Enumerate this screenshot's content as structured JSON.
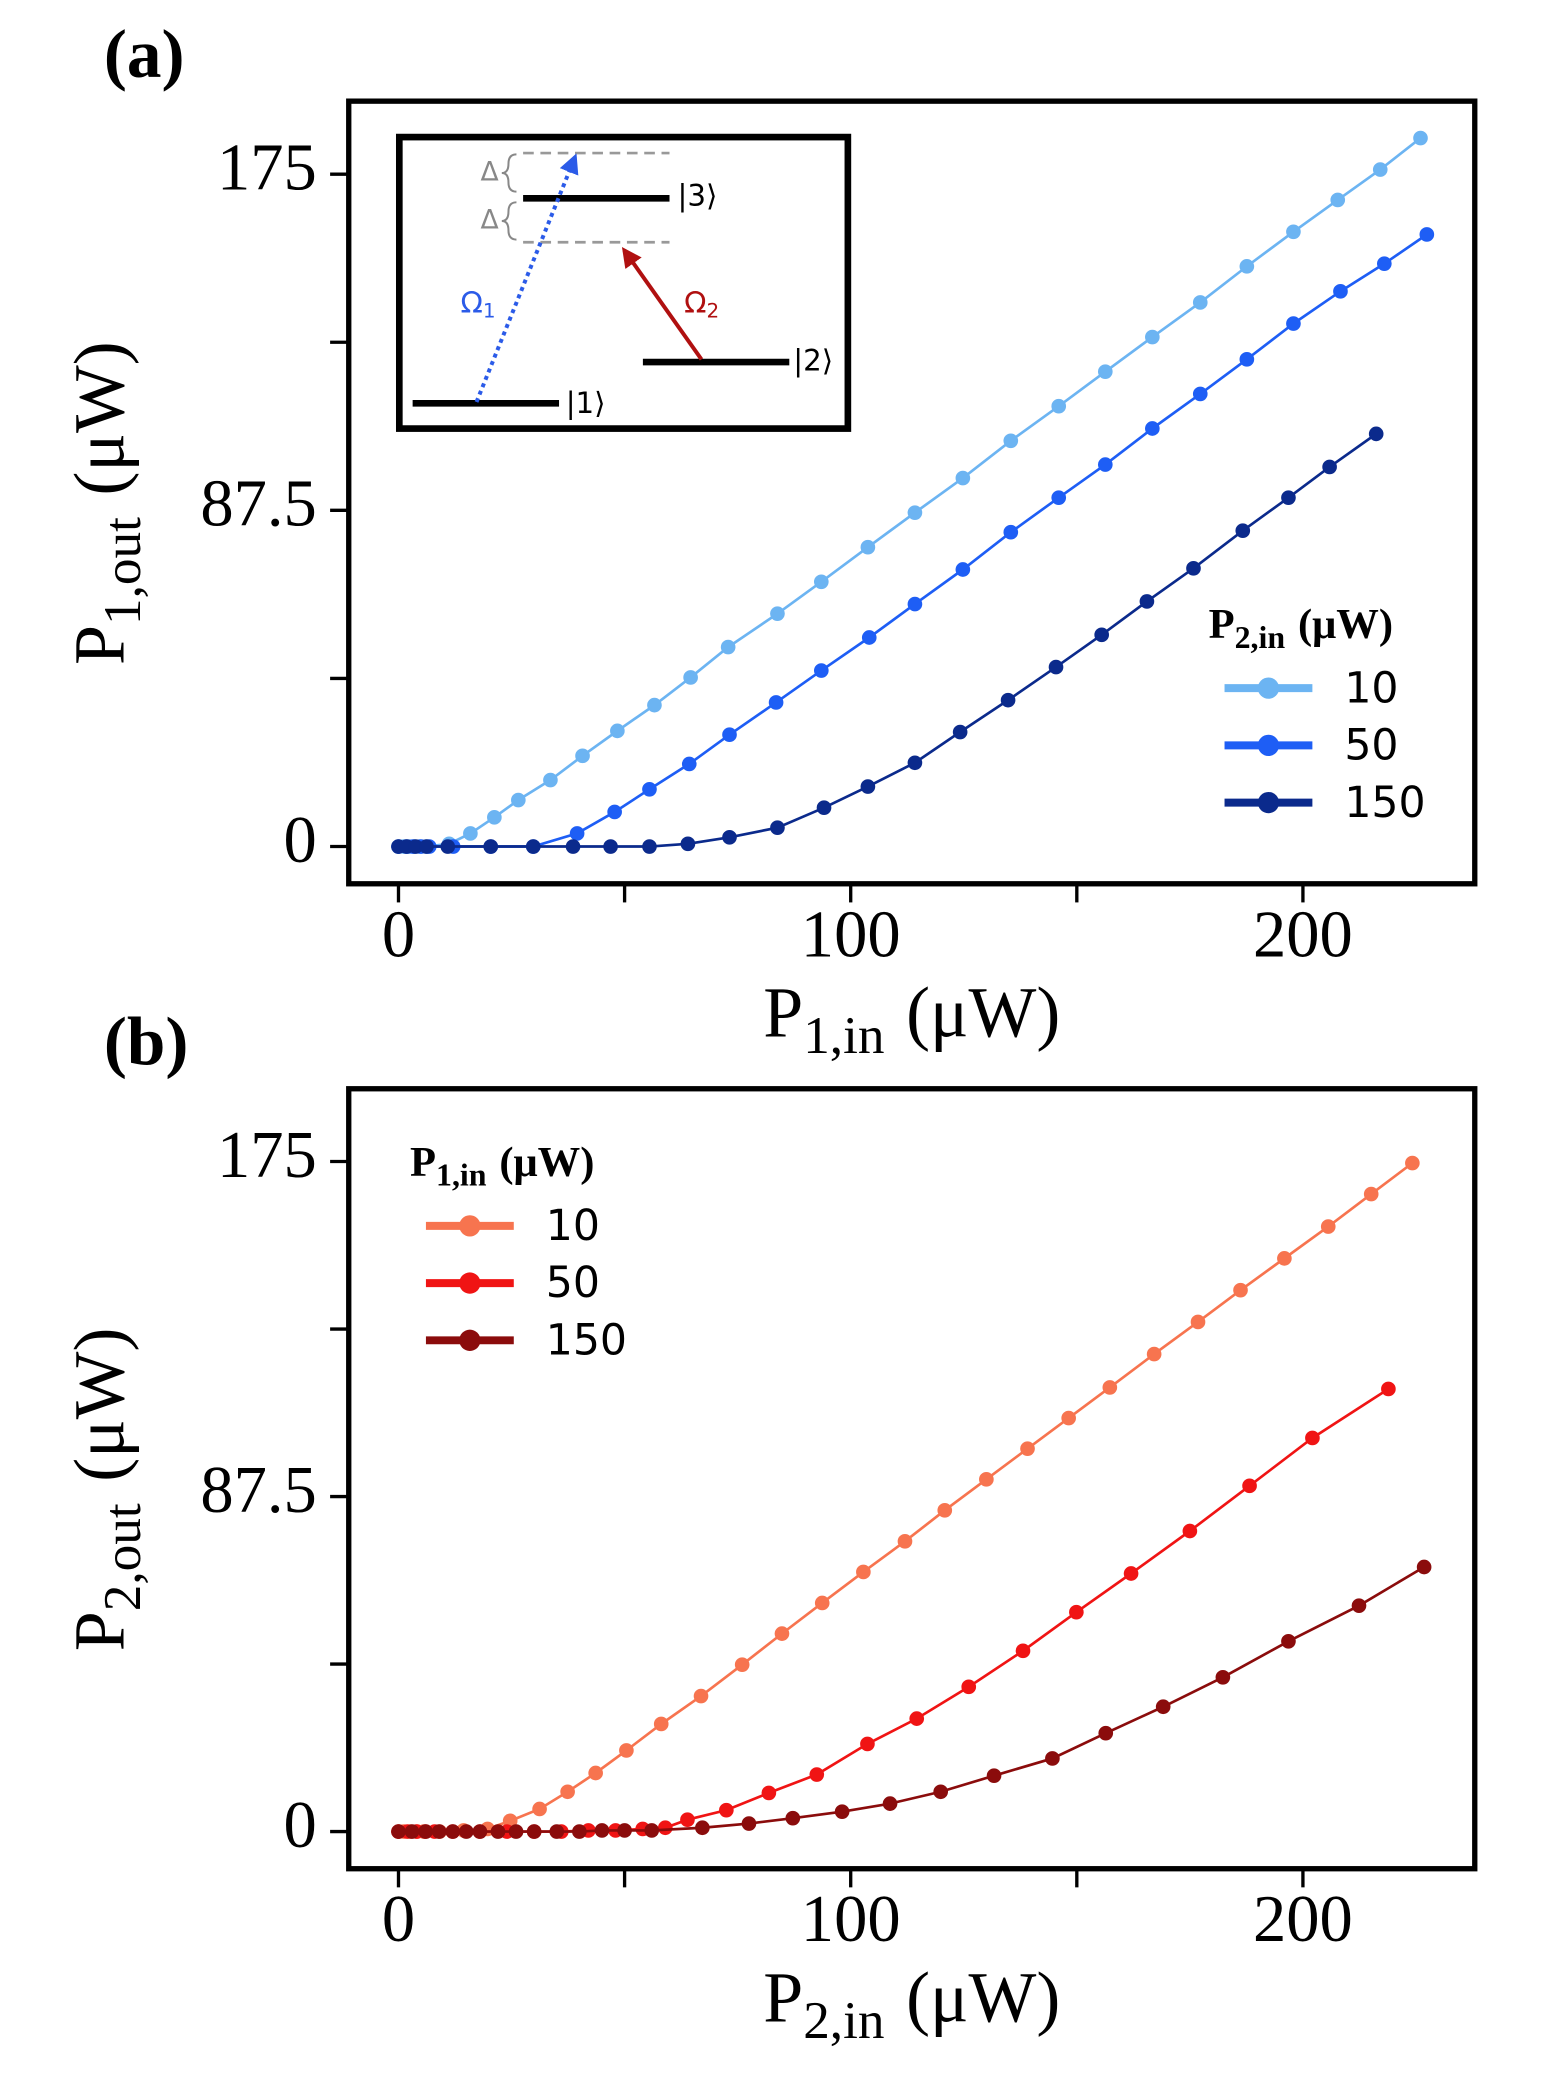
{
  "chart_data": [
    {
      "type": "line",
      "panel": "(a)",
      "xlabel": {
        "main": "P",
        "sub": "1,in",
        "unit": "(μW)"
      },
      "ylabel": {
        "main": "P",
        "sub": "1,out",
        "unit": "(μW)"
      },
      "xlim": [
        -11,
        238
      ],
      "xticks": [
        0,
        100,
        200
      ],
      "xminor": [
        50,
        150
      ],
      "ylim": [
        -9.7,
        194
      ],
      "yticks": [
        0,
        87.5,
        175
      ],
      "yminor": [
        43.75,
        131.25
      ],
      "legend_title": {
        "main": "P",
        "sub": "2,in",
        "unit": "(μW)"
      },
      "legend_loc": "right",
      "series": [
        {
          "name": "10",
          "color": "#6cb4f2",
          "x": [
            0,
            1.2,
            2.4,
            3.5,
            4.7,
            6.2,
            11.2,
            15.9,
            21.2,
            26.5,
            33.6,
            40.7,
            48.4,
            56.6,
            64.6,
            72.9,
            83.8,
            93.5,
            103.8,
            114.2,
            124.8,
            135.4,
            146,
            156.3,
            166.7,
            177.3,
            187.6,
            197.9,
            207.7,
            217.1,
            226
          ],
          "values": [
            0,
            0,
            0,
            0,
            0,
            0,
            0.7,
            3.4,
            7.6,
            12.1,
            17.3,
            23.6,
            30.1,
            36.8,
            44.0,
            51.9,
            60.6,
            68.9,
            77.9,
            86.9,
            95.9,
            105.6,
            114.6,
            123.6,
            132.6,
            141.6,
            151.0,
            160.0,
            168.3,
            176.2,
            184.4
          ]
        },
        {
          "name": "50",
          "color": "#1e5ef5",
          "x": [
            0,
            1.8,
            3.2,
            5,
            6.8,
            12.1,
            20.4,
            29.8,
            39.5,
            47.8,
            55.5,
            64.3,
            73.2,
            83.5,
            93.5,
            104.1,
            114.2,
            124.8,
            135.4,
            146,
            156.3,
            166.7,
            177.3,
            187.6,
            197.9,
            208.3,
            218,
            227.4
          ],
          "values": [
            0,
            0,
            0,
            0,
            0,
            0,
            0,
            0,
            3.4,
            9.0,
            14.9,
            21.5,
            29.1,
            37.5,
            45.8,
            54.4,
            63.1,
            72.1,
            81.8,
            90.8,
            99.4,
            108.8,
            117.8,
            126.8,
            136.1,
            144.5,
            151.7,
            159.3
          ]
        },
        {
          "name": "150",
          "color": "#0b2a8c",
          "x": [
            0,
            1.8,
            3.8,
            6.2,
            10.9,
            20.4,
            29.8,
            38.6,
            46.9,
            55.5,
            64,
            73.2,
            83.8,
            94.1,
            103.8,
            114.2,
            124.2,
            134.8,
            145.4,
            155.5,
            165.5,
            175.8,
            186.7,
            196.8,
            205.9,
            216.2
          ],
          "values": [
            0,
            0,
            0,
            0,
            0,
            0,
            0,
            0,
            0,
            0,
            0.7,
            2.4,
            4.9,
            10.1,
            15.6,
            21.8,
            29.8,
            38.1,
            46.7,
            55.1,
            63.8,
            72.4,
            82.2,
            90.8,
            98.8,
            107.4
          ]
        }
      ],
      "inset": {
        "state_labels": [
          "|1⟩",
          "|2⟩",
          "|3⟩"
        ],
        "detuning_labels": [
          "Δ",
          "Δ"
        ],
        "couplings": [
          {
            "symbol": "Ω",
            "sub": "1"
          },
          {
            "symbol": "Ω",
            "sub": "2"
          }
        ]
      }
    },
    {
      "type": "line",
      "panel": "(b)",
      "xlabel": {
        "main": "P",
        "sub": "2,in",
        "unit": "(μW)"
      },
      "ylabel": {
        "main": "P",
        "sub": "2,out",
        "unit": "(μW)"
      },
      "xlim": [
        -11,
        238
      ],
      "xticks": [
        0,
        100,
        200
      ],
      "xminor": [
        50,
        150
      ],
      "ylim": [
        -9.7,
        194
      ],
      "yticks": [
        0,
        87.5,
        175
      ],
      "yminor": [
        43.75,
        131.25
      ],
      "legend_title": {
        "main": "P",
        "sub": "1,in",
        "unit": "(μW)"
      },
      "legend_loc": "left",
      "series": [
        {
          "name": "10",
          "color": "#f7744f",
          "x": [
            0,
            1.2,
            2.7,
            4.1,
            5.6,
            9.1,
            14.4,
            19.7,
            24.7,
            31.2,
            37.4,
            43.6,
            50.4,
            58.1,
            66.9,
            76.0,
            84.8,
            93.7,
            102.8,
            112.0,
            120.8,
            130.0,
            139.1,
            148.2,
            157.3,
            167.1,
            176.8,
            186.2,
            195.9,
            205.6,
            215.1,
            224.2
          ],
          "values": [
            0,
            0,
            0,
            0,
            0,
            0,
            0.3,
            0.7,
            2.8,
            5.9,
            10.4,
            15.3,
            21.2,
            28.1,
            35.4,
            43.6,
            51.7,
            59.7,
            67.8,
            75.8,
            83.9,
            92.0,
            100.0,
            108.0,
            116.0,
            124.7,
            133.1,
            141.4,
            149.7,
            158.0,
            166.5,
            174.6
          ]
        },
        {
          "name": "50",
          "color": "#f01414",
          "x": [
            0,
            2,
            4,
            6,
            8,
            12,
            18,
            24,
            30,
            36,
            42,
            48,
            54,
            59,
            63.9,
            72.5,
            81.9,
            92.5,
            103.7,
            114.6,
            126.1,
            138.1,
            149.9,
            162.0,
            175.0,
            188.2,
            202.1,
            218.9
          ],
          "values": [
            0,
            0,
            0,
            0,
            0,
            0,
            0,
            0,
            0,
            0,
            0.3,
            0.3,
            0.7,
            1.0,
            3.1,
            5.6,
            10.1,
            14.9,
            22.9,
            29.5,
            37.8,
            47.2,
            57.3,
            67.4,
            78.5,
            90.3,
            102.8,
            115.6
          ]
        },
        {
          "name": "150",
          "color": "#8b0c0c",
          "x": [
            0,
            3,
            6,
            9,
            12,
            15,
            18,
            22,
            26,
            30,
            35,
            40,
            45,
            50,
            56,
            67.2,
            77.5,
            87.2,
            98.1,
            108.7,
            119.9,
            131.7,
            144.6,
            156.4,
            169.1,
            182.3,
            196.8,
            212.4,
            226.8
          ],
          "values": [
            0,
            0,
            0,
            0,
            0,
            0,
            0,
            0,
            0,
            0,
            0,
            0,
            0.3,
            0.3,
            0.3,
            1.0,
            2.1,
            3.5,
            5.2,
            7.3,
            10.4,
            14.6,
            19.1,
            25.7,
            32.6,
            40.3,
            49.7,
            59.0,
            69.1
          ]
        }
      ]
    }
  ]
}
